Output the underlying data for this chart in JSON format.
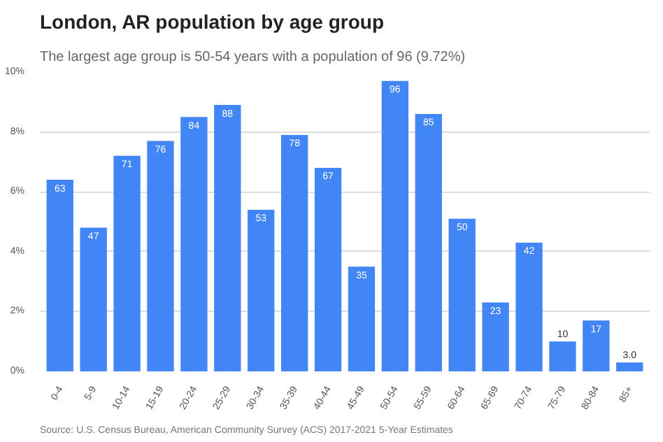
{
  "chart_data": {
    "type": "bar",
    "title": "London, AR population by age group",
    "subtitle": "The largest age group is 50-54 years with a population of 96 (9.72%)",
    "categories": [
      "0-4",
      "5-9",
      "10-14",
      "15-19",
      "20-24",
      "25-29",
      "30-34",
      "35-39",
      "40-44",
      "45-49",
      "50-54",
      "55-59",
      "60-64",
      "65-69",
      "70-74",
      "75-79",
      "80-84",
      "85+"
    ],
    "values": [
      6.4,
      4.8,
      7.2,
      7.7,
      8.5,
      8.9,
      5.4,
      7.9,
      6.8,
      3.5,
      9.7,
      8.6,
      5.1,
      2.3,
      4.3,
      1.0,
      1.7,
      0.3
    ],
    "color": "#4285f4",
    "ylim": [
      0,
      10
    ],
    "yticks": [
      {
        "value": 0,
        "label": "0%"
      },
      {
        "value": 2,
        "label": "2%"
      },
      {
        "value": 4,
        "label": "4%"
      },
      {
        "value": 6,
        "label": "6%"
      },
      {
        "value": 8,
        "label": "8%"
      },
      {
        "value": 10,
        "label": "10%"
      }
    ],
    "grid": "y",
    "annotations": [
      {
        "text": "63",
        "x": "0-4",
        "y": 6.4
      },
      {
        "text": "47",
        "x": "5-9",
        "y": 4.8
      },
      {
        "text": "71",
        "x": "10-14",
        "y": 7.2
      },
      {
        "text": "76",
        "x": "15-19",
        "y": 7.7
      },
      {
        "text": "84",
        "x": "20-24",
        "y": 8.5
      },
      {
        "text": "88",
        "x": "25-29",
        "y": 8.9
      },
      {
        "text": "53",
        "x": "30-34",
        "y": 5.4
      },
      {
        "text": "78",
        "x": "35-39",
        "y": 7.9
      },
      {
        "text": "67",
        "x": "40-44",
        "y": 6.8
      },
      {
        "text": "35",
        "x": "45-49",
        "y": 3.5
      },
      {
        "text": "96",
        "x": "50-54",
        "y": 9.7
      },
      {
        "text": "85",
        "x": "55-59",
        "y": 8.6
      },
      {
        "text": "50",
        "x": "60-64",
        "y": 5.1
      },
      {
        "text": "23",
        "x": "65-69",
        "y": 2.3
      },
      {
        "text": "42",
        "x": "70-74",
        "y": 4.3
      },
      {
        "text": "10",
        "x": "75-79",
        "y": 1.0
      },
      {
        "text": "17",
        "x": "80-84",
        "y": 1.7
      },
      {
        "text": "3.0",
        "x": "85+",
        "y": 0.3
      },
      "Source: U.S. Census Bureau, American Community Survey (ACS) 2017-2021 5-Year Estimates"
    ]
  }
}
